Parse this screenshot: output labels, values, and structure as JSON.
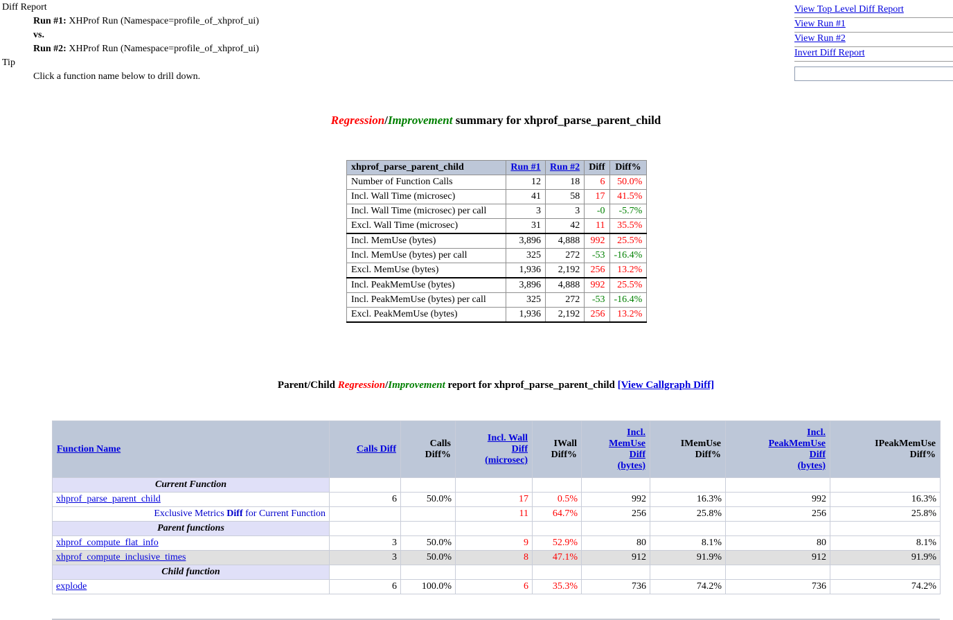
{
  "colors": {
    "link_blue": "#0000dd",
    "negative_red": "#ff0000",
    "positive_green": "#008000",
    "table_header_bg": "#bdc7d8",
    "section_row_bg": "#e0e0f8",
    "alt_row_bg": "#e0e0e0"
  },
  "header_info": {
    "diff_report_label": "Diff Report",
    "run1_label": "Run #1:",
    "run1_value": " XHProf Run (Namespace=profile_of_xhprof_ui)",
    "vs_label": "vs.",
    "run2_label": "Run #2:",
    "run2_value": " XHProf Run (Namespace=profile_of_xhprof_ui)",
    "tip_label": "Tip",
    "tip_text": "Click a function name below to drill down."
  },
  "nav": {
    "links": [
      "View Top Level Diff Report",
      "View Run #1",
      "View Run #2",
      "Invert Diff Report"
    ],
    "filter_input": {
      "value": "",
      "placeholder": ""
    }
  },
  "summary": {
    "title_parts": {
      "regression": "Regression",
      "slash": "/",
      "improvement": "Improvement",
      "suffix": " summary for xhprof_parse_parent_child"
    },
    "table": {
      "header": {
        "name": "xhprof_parse_parent_child",
        "run1": "Run #1",
        "run2": "Run #2",
        "diff": "Diff",
        "diffpct": "Diff%"
      },
      "rows": [
        {
          "metric": "Number of Function Calls",
          "run1": "12",
          "run2": "18",
          "diff": "6",
          "diff_color": "red",
          "diffpct": "50.0%",
          "pct_color": "red",
          "group_end": false
        },
        {
          "metric": "Incl. Wall Time (microsec)",
          "run1": "41",
          "run2": "58",
          "diff": "17",
          "diff_color": "red",
          "diffpct": "41.5%",
          "pct_color": "red",
          "group_end": false
        },
        {
          "metric": "Incl. Wall Time (microsec) per call",
          "run1": "3",
          "run2": "3",
          "diff": "-0",
          "diff_color": "green",
          "diffpct": "-5.7%",
          "pct_color": "green",
          "group_end": false
        },
        {
          "metric": "Excl. Wall Time (microsec)",
          "run1": "31",
          "run2": "42",
          "diff": "11",
          "diff_color": "red",
          "diffpct": "35.5%",
          "pct_color": "red",
          "group_end": true
        },
        {
          "metric": "Incl. MemUse (bytes)",
          "run1": "3,896",
          "run2": "4,888",
          "diff": "992",
          "diff_color": "red",
          "diffpct": "25.5%",
          "pct_color": "red",
          "group_end": false
        },
        {
          "metric": "Incl. MemUse (bytes) per call",
          "run1": "325",
          "run2": "272",
          "diff": "-53",
          "diff_color": "green",
          "diffpct": "-16.4%",
          "pct_color": "green",
          "group_end": false
        },
        {
          "metric": "Excl. MemUse (bytes)",
          "run1": "1,936",
          "run2": "2,192",
          "diff": "256",
          "diff_color": "red",
          "diffpct": "13.2%",
          "pct_color": "red",
          "group_end": true
        },
        {
          "metric": "Incl. PeakMemUse (bytes)",
          "run1": "3,896",
          "run2": "4,888",
          "diff": "992",
          "diff_color": "red",
          "diffpct": "25.5%",
          "pct_color": "red",
          "group_end": false
        },
        {
          "metric": "Incl. PeakMemUse (bytes) per call",
          "run1": "325",
          "run2": "272",
          "diff": "-53",
          "diff_color": "green",
          "diffpct": "-16.4%",
          "pct_color": "green",
          "group_end": false
        },
        {
          "metric": "Excl. PeakMemUse (bytes)",
          "run1": "1,936",
          "run2": "2,192",
          "diff": "256",
          "diff_color": "red",
          "diffpct": "13.2%",
          "pct_color": "red",
          "group_end": true
        }
      ]
    }
  },
  "report": {
    "heading_parts": {
      "prefix": "Parent/Child ",
      "regression": "Regression",
      "slash": "/",
      "improvement": "Improvement",
      "suffix": " report for xhprof_parse_parent_child ",
      "callgraph_link": "[View Callgraph Diff]"
    },
    "table": {
      "headers": [
        {
          "label": "Function Name",
          "link": true
        },
        {
          "label": "Calls Diff",
          "link": true
        },
        {
          "label": "Calls\nDiff%",
          "link": false
        },
        {
          "label": "Incl. Wall\nDiff\n(microsec)",
          "link": true
        },
        {
          "label": "IWall\nDiff%",
          "link": false
        },
        {
          "label": "Incl.\nMemUse\nDiff\n(bytes)",
          "link": true
        },
        {
          "label": "IMemUse\nDiff%",
          "link": false
        },
        {
          "label": "Incl.\nPeakMemUse\nDiff\n(bytes)",
          "link": true
        },
        {
          "label": "IPeakMemUse\nDiff%",
          "link": false
        }
      ],
      "rows": [
        {
          "type": "section",
          "label": "Current Function"
        },
        {
          "type": "function",
          "label": "xhprof_parse_parent_child",
          "bg": "white",
          "values": [
            "6",
            "50.0%",
            "17",
            "0.5%",
            "992",
            "16.3%",
            "992",
            "16.3%"
          ],
          "value_colors": [
            "k",
            "k",
            "r",
            "r",
            "k",
            "k",
            "k",
            "k"
          ]
        },
        {
          "type": "exclusive",
          "label_parts": [
            "Exclusive Metrics ",
            "Diff",
            " for Current Function"
          ],
          "bg": "white",
          "values": [
            "",
            "",
            "11",
            "64.7%",
            "256",
            "25.8%",
            "256",
            "25.8%"
          ],
          "value_colors": [
            "k",
            "k",
            "r",
            "r",
            "k",
            "k",
            "k",
            "k"
          ]
        },
        {
          "type": "section",
          "label": "Parent functions"
        },
        {
          "type": "function",
          "label": "xhprof_compute_flat_info",
          "bg": "white",
          "values": [
            "3",
            "50.0%",
            "9",
            "52.9%",
            "80",
            "8.1%",
            "80",
            "8.1%"
          ],
          "value_colors": [
            "k",
            "k",
            "r",
            "r",
            "k",
            "k",
            "k",
            "k"
          ]
        },
        {
          "type": "function",
          "label": "xhprof_compute_inclusive_times",
          "bg": "gray",
          "values": [
            "3",
            "50.0%",
            "8",
            "47.1%",
            "912",
            "91.9%",
            "912",
            "91.9%"
          ],
          "value_colors": [
            "k",
            "k",
            "r",
            "r",
            "k",
            "k",
            "k",
            "k"
          ]
        },
        {
          "type": "section",
          "label": "Child function"
        },
        {
          "type": "function",
          "label": "explode",
          "bg": "white",
          "values": [
            "6",
            "100.0%",
            "6",
            "35.3%",
            "736",
            "74.2%",
            "736",
            "74.2%"
          ],
          "value_colors": [
            "k",
            "k",
            "r",
            "r",
            "k",
            "k",
            "k",
            "k"
          ]
        }
      ]
    }
  }
}
